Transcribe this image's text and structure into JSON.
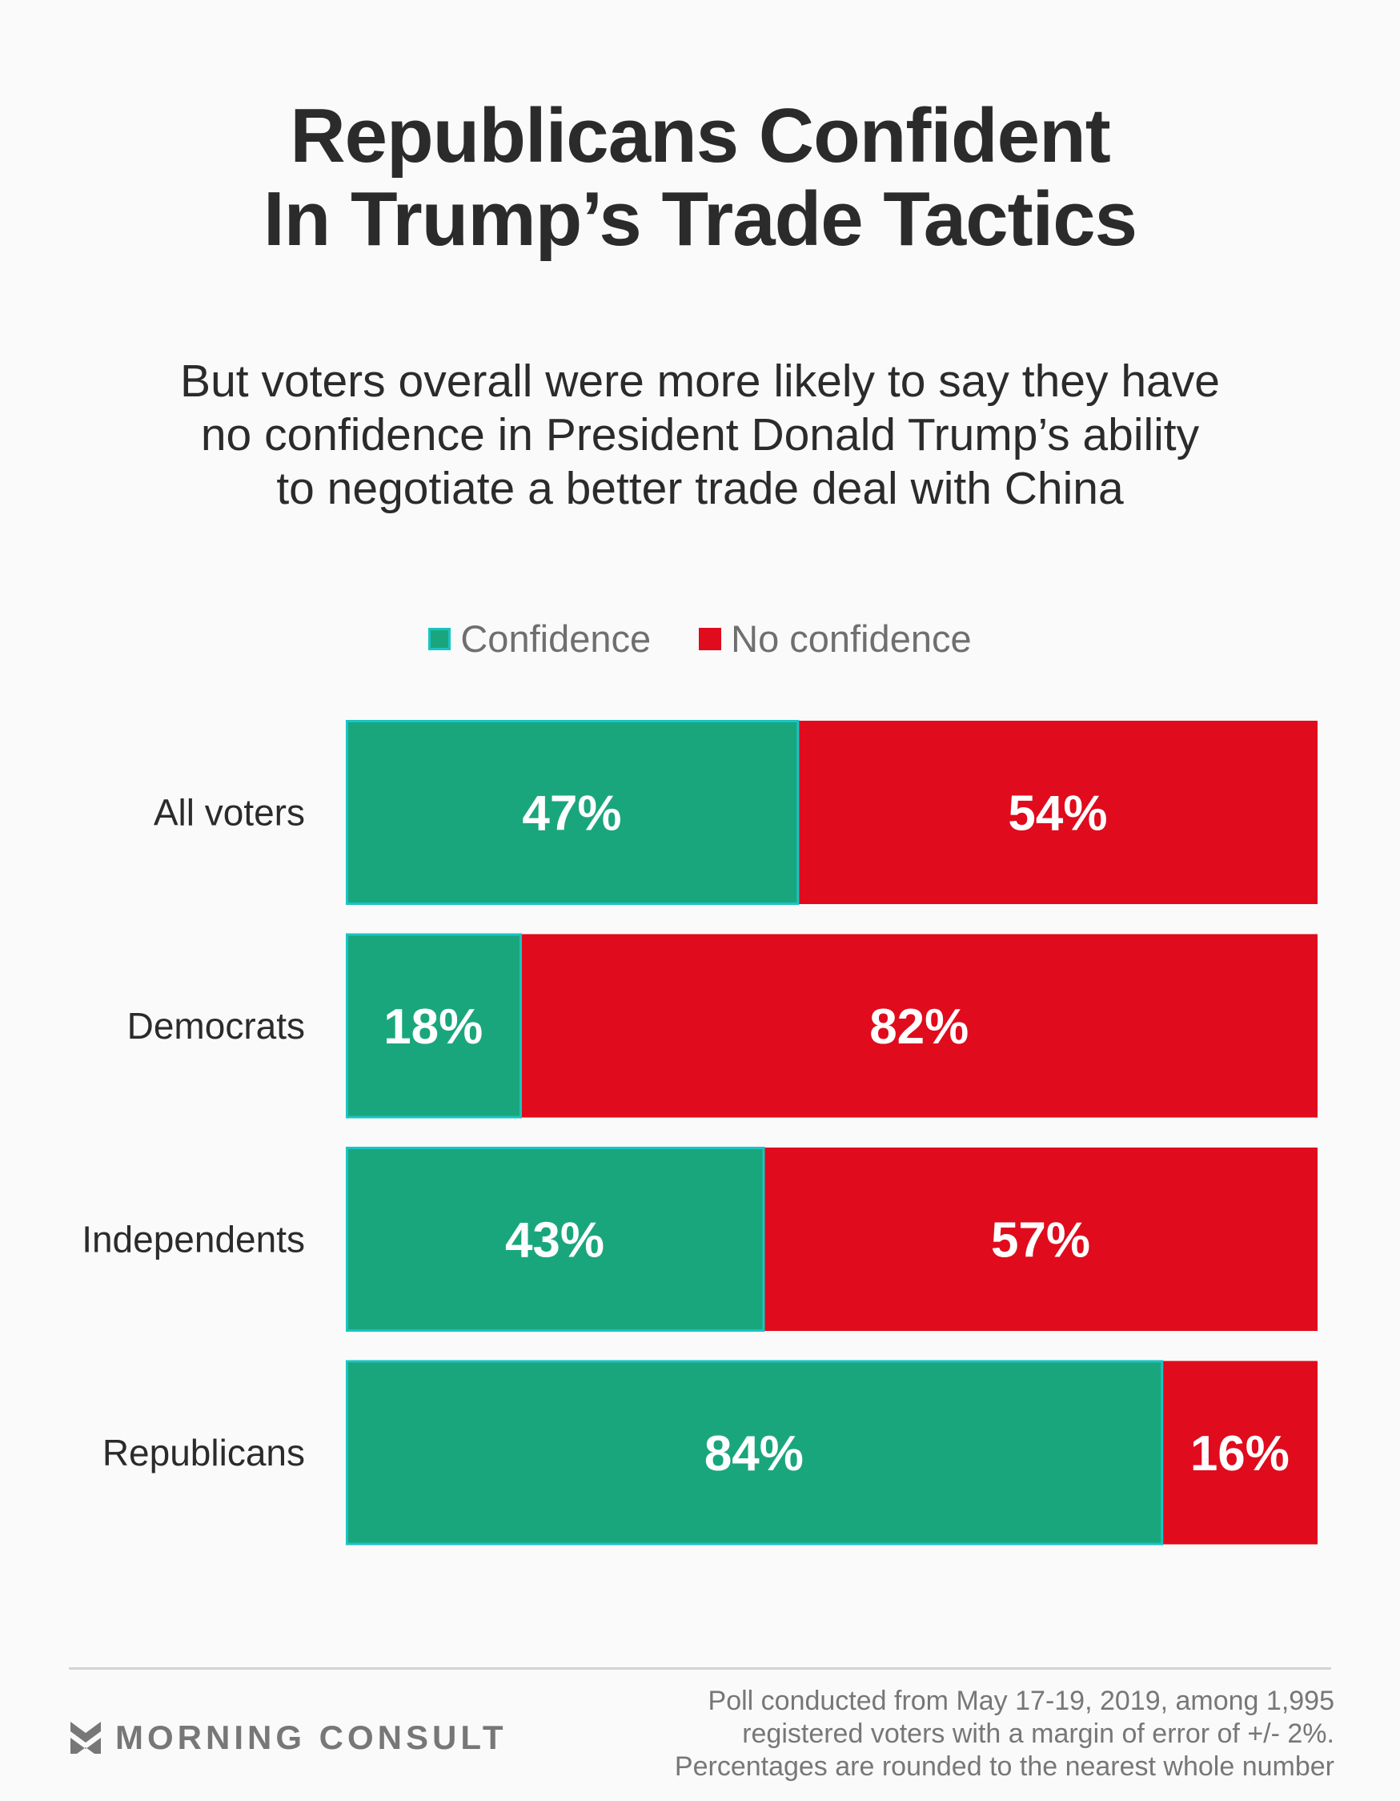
{
  "header": {
    "title_lines": [
      "Republicans Confident",
      "In Trump’s Trade Tactics"
    ],
    "subtitle_lines": [
      "But voters overall were more likely to say they have",
      "no confidence in President Donald Trump’s ability",
      "to negotiate a better trade deal with China"
    ]
  },
  "colors": {
    "confidence": "#1aa67c",
    "confidence_border": "#19c4c4",
    "no_confidence": "#e00b1c"
  },
  "chart_data": {
    "type": "bar",
    "orientation": "horizontal-stacked-100",
    "categories": [
      "All voters",
      "Democrats",
      "Independents",
      "Republicans"
    ],
    "series": [
      {
        "name": "Confidence",
        "values": [
          47,
          18,
          43,
          84
        ]
      },
      {
        "name": "No confidence",
        "values": [
          54,
          82,
          57,
          16
        ]
      }
    ],
    "value_labels": {
      "Confidence": [
        "47%",
        "18%",
        "43%",
        "84%"
      ],
      "No confidence": [
        "54%",
        "82%",
        "57%",
        "16%"
      ]
    },
    "legend_placement": "top-center",
    "grid": false,
    "xlim": [
      0,
      100
    ]
  },
  "legend": {
    "items": [
      "Confidence",
      "No confidence"
    ]
  },
  "footer": {
    "brand": "MORNING CONSULT",
    "note_lines": [
      "Poll conducted from May 17-19, 2019, among 1,995",
      "registered voters with a margin of error of +/- 2%.",
      "Percentages are rounded to the nearest whole number"
    ]
  }
}
